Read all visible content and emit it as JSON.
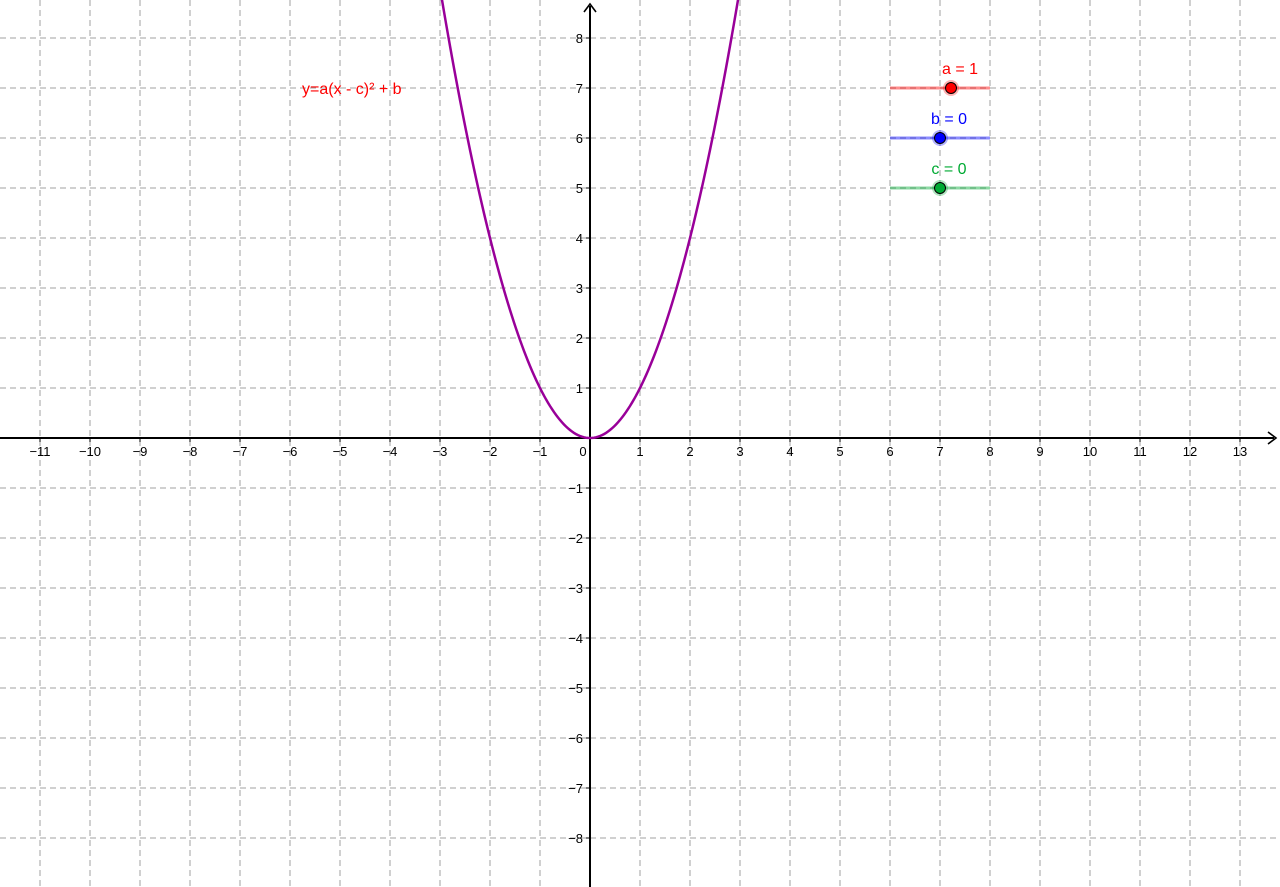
{
  "chart_data": {
    "type": "line",
    "title": "",
    "xlabel": "",
    "ylabel": "",
    "xlim": [
      -11.8,
      13.8
    ],
    "ylim": [
      -8.98,
      8.76
    ],
    "grid": true,
    "grid_style": "dashed",
    "x_ticks": [
      -11,
      -10,
      -9,
      -8,
      -7,
      -6,
      -5,
      -4,
      -3,
      -2,
      -1,
      0,
      1,
      2,
      3,
      4,
      5,
      6,
      7,
      8,
      9,
      10,
      11,
      12,
      13
    ],
    "y_ticks": [
      -8,
      -7,
      -6,
      -5,
      -4,
      -3,
      -2,
      -1,
      1,
      2,
      3,
      4,
      5,
      6,
      7,
      8
    ],
    "function_label": "y=a(x - c)² + b",
    "series": [
      {
        "expression": "a(x - c)^2 + b",
        "color": "#990099"
      }
    ],
    "sliders": [
      {
        "name": "a",
        "label": "a = 1",
        "value": 1,
        "fraction": 0.61,
        "color": "#ff0000",
        "y": 7
      },
      {
        "name": "b",
        "label": "b = 0",
        "value": 0,
        "fraction": 0.5,
        "color": "#0000ff",
        "y": 6
      },
      {
        "name": "c",
        "label": "c = 0",
        "value": 0,
        "fraction": 0.5,
        "color": "#00aa33",
        "y": 5
      }
    ],
    "function_label_color": "#ff0000"
  }
}
